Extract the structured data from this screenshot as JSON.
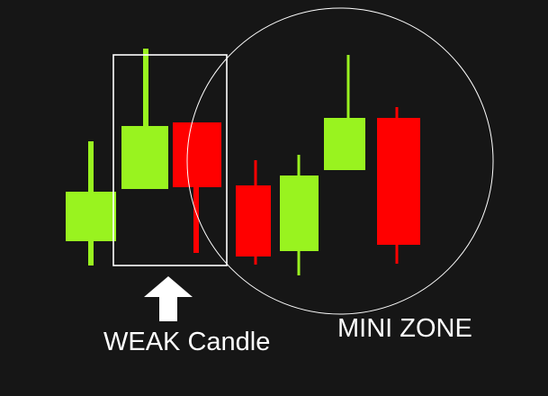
{
  "colors": {
    "background": "#161616",
    "bullish": "#99f31f",
    "bearish": "#ff0000",
    "annotation": "#ffffff"
  },
  "candles": [
    {
      "direction": "bullish"
    },
    {
      "direction": "bullish"
    },
    {
      "direction": "bearish"
    },
    {
      "direction": "bearish"
    },
    {
      "direction": "bullish"
    },
    {
      "direction": "bullish"
    },
    {
      "direction": "bearish"
    }
  ],
  "annotations": {
    "weak_candle_label": "WEAK Candle",
    "zone_label": "MINI ZONE",
    "arrow_icon": "arrow-up-icon",
    "highlight_box": "rectangle",
    "zone_outline": "circle"
  }
}
